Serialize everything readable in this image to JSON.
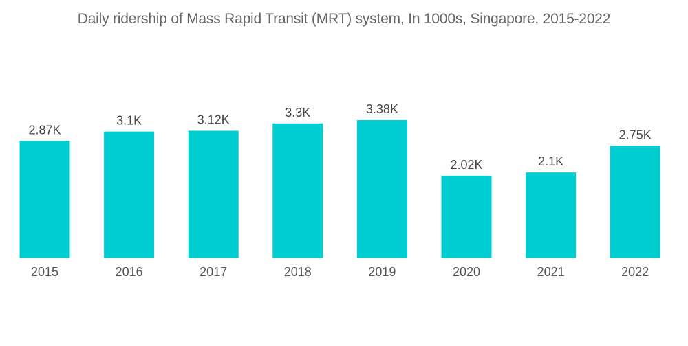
{
  "chart_data": {
    "type": "bar",
    "title": "Daily ridership of Mass Rapid Transit (MRT) system, In 1000s, Singapore, 2015-2022",
    "categories": [
      "2015",
      "2016",
      "2017",
      "2018",
      "2019",
      "2020",
      "2021",
      "2022"
    ],
    "values": [
      2.87,
      3.1,
      3.12,
      3.3,
      3.38,
      2.02,
      2.1,
      2.75
    ],
    "value_labels": [
      "2.87K",
      "3.1K",
      "3.12K",
      "3.3K",
      "3.38K",
      "2.02K",
      "2.1K",
      "2.75K"
    ],
    "xlabel": "",
    "ylabel": "",
    "ylim": [
      0,
      3.38
    ],
    "grid": false,
    "legend": "none",
    "bar_color": "#00CED1"
  }
}
